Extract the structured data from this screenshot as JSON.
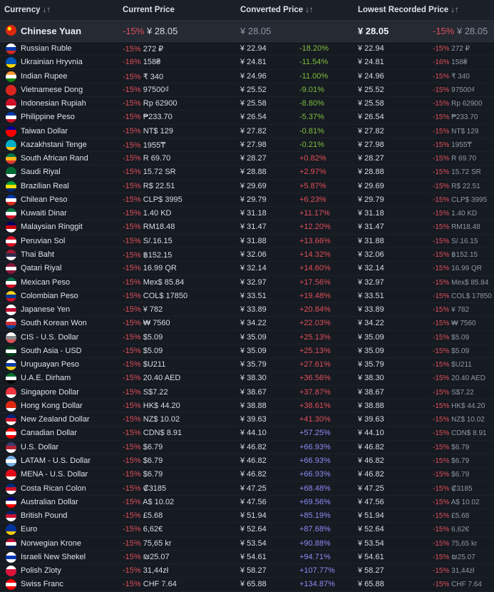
{
  "headers": {
    "currency": "Currency",
    "current_price": "Current Price",
    "converted_price": "Converted Price",
    "lowest_price": "Lowest Recorded Price",
    "sort_icon": "↓↑"
  },
  "highlight": {
    "currency": "Chinese Yuan",
    "flag": [
      "#de2910",
      "#de2910",
      "#ffde00"
    ],
    "discount": "-15%",
    "price": "¥ 28.05",
    "converted": "¥ 28.05",
    "lowest": "¥ 28.05",
    "lowest_discount": "-15%",
    "lowest_price": "¥ 28.05"
  },
  "rows": [
    {
      "currency": "Russian Ruble",
      "flag": [
        "#ffffff",
        "#0039a6",
        "#d52b1e"
      ],
      "discount": "-15%",
      "price": "272 ₽",
      "converted": "¥ 22.94",
      "diff": "-18.20%",
      "cls": "neg",
      "lowest": "¥ 22.94",
      "low_discount": "-15%",
      "low_price": "272 ₽"
    },
    {
      "currency": "Ukrainian Hryvnia",
      "flag": [
        "#0057b7",
        "#0057b7",
        "#ffd700"
      ],
      "discount": "-16%",
      "price": "158₴",
      "converted": "¥ 24.81",
      "diff": "-11.54%",
      "cls": "neg",
      "lowest": "¥ 24.81",
      "low_discount": "-16%",
      "low_price": "158₴"
    },
    {
      "currency": "Indian Rupee",
      "flag": [
        "#ff9933",
        "#ffffff",
        "#138808"
      ],
      "discount": "-15%",
      "price": "₹ 340",
      "converted": "¥ 24.96",
      "diff": "-11.00%",
      "cls": "neg",
      "lowest": "¥ 24.96",
      "low_discount": "-15%",
      "low_price": "₹ 340"
    },
    {
      "currency": "Vietnamese Dong",
      "flag": [
        "#da251d",
        "#da251d",
        "#da251d"
      ],
      "discount": "-15%",
      "price": "97500₫",
      "converted": "¥ 25.52",
      "diff": "-9.01%",
      "cls": "neg",
      "lowest": "¥ 25.52",
      "low_discount": "-15%",
      "low_price": "97500₫"
    },
    {
      "currency": "Indonesian Rupiah",
      "flag": [
        "#ce1126",
        "#ce1126",
        "#ffffff"
      ],
      "discount": "-15%",
      "price": "Rp 62900",
      "converted": "¥ 25.58",
      "diff": "-8.80%",
      "cls": "neg",
      "lowest": "¥ 25.58",
      "low_discount": "-15%",
      "low_price": "Rp 62900"
    },
    {
      "currency": "Philippine Peso",
      "flag": [
        "#0038a8",
        "#ffffff",
        "#ce1126"
      ],
      "discount": "-15%",
      "price": "₱233.70",
      "converted": "¥ 26.54",
      "diff": "-5.37%",
      "cls": "neg",
      "lowest": "¥ 26.54",
      "low_discount": "-15%",
      "low_price": "₱233.70"
    },
    {
      "currency": "Taiwan Dollar",
      "flag": [
        "#000095",
        "#fe0000",
        "#fe0000"
      ],
      "discount": "-15%",
      "price": "NT$ 129",
      "converted": "¥ 27.82",
      "diff": "-0.81%",
      "cls": "neg",
      "lowest": "¥ 27.82",
      "low_discount": "-15%",
      "low_price": "NT$ 129"
    },
    {
      "currency": "Kazakhstani Tenge",
      "flag": [
        "#00afca",
        "#00afca",
        "#fec50c"
      ],
      "discount": "-15%",
      "price": "1955₸",
      "converted": "¥ 27.98",
      "diff": "-0.21%",
      "cls": "neg",
      "lowest": "¥ 27.98",
      "low_discount": "-15%",
      "low_price": "1955₸"
    },
    {
      "currency": "South African Rand",
      "flag": [
        "#007a4d",
        "#ffb612",
        "#de3831"
      ],
      "discount": "-15%",
      "price": "R 69.70",
      "converted": "¥ 28.27",
      "diff": "+0.82%",
      "cls": "pos",
      "lowest": "¥ 28.27",
      "low_discount": "-15%",
      "low_price": "R 69.70"
    },
    {
      "currency": "Saudi Riyal",
      "flag": [
        "#006c35",
        "#006c35",
        "#ffffff"
      ],
      "discount": "-15%",
      "price": "15.72 SR",
      "converted": "¥ 28.88",
      "diff": "+2.97%",
      "cls": "pos",
      "lowest": "¥ 28.88",
      "low_discount": "-15%",
      "low_price": "15.72 SR"
    },
    {
      "currency": "Brazilian Real",
      "flag": [
        "#009c3b",
        "#ffdf00",
        "#002776"
      ],
      "discount": "-15%",
      "price": "R$ 22.51",
      "converted": "¥ 29.69",
      "diff": "+5.87%",
      "cls": "pos",
      "lowest": "¥ 29.69",
      "low_discount": "-15%",
      "low_price": "R$ 22.51"
    },
    {
      "currency": "Chilean Peso",
      "flag": [
        "#0039a6",
        "#ffffff",
        "#d52b1e"
      ],
      "discount": "-15%",
      "price": "CLP$ 3995",
      "converted": "¥ 29.79",
      "diff": "+6.23%",
      "cls": "pos",
      "lowest": "¥ 29.79",
      "low_discount": "-15%",
      "low_price": "CLP$ 3995"
    },
    {
      "currency": "Kuwaiti Dinar",
      "flag": [
        "#007a3d",
        "#ffffff",
        "#ce1126"
      ],
      "discount": "-15%",
      "price": "1.40 KD",
      "converted": "¥ 31.18",
      "diff": "+11.17%",
      "cls": "pos",
      "lowest": "¥ 31.18",
      "low_discount": "-15%",
      "low_price": "1.40 KD"
    },
    {
      "currency": "Malaysian Ringgit",
      "flag": [
        "#010066",
        "#cc0001",
        "#ffffff"
      ],
      "discount": "-15%",
      "price": "RM18.48",
      "converted": "¥ 31.47",
      "diff": "+12.20%",
      "cls": "pos",
      "lowest": "¥ 31.47",
      "low_discount": "-15%",
      "low_price": "RM18.48"
    },
    {
      "currency": "Peruvian Sol",
      "flag": [
        "#d91023",
        "#ffffff",
        "#d91023"
      ],
      "discount": "-15%",
      "price": "S/.16.15",
      "converted": "¥ 31.88",
      "diff": "+13.66%",
      "cls": "pos",
      "lowest": "¥ 31.88",
      "low_discount": "-15%",
      "low_price": "S/.16.15"
    },
    {
      "currency": "Thai Baht",
      "flag": [
        "#a51931",
        "#2d2a4a",
        "#f4f5f8"
      ],
      "discount": "-15%",
      "price": "฿152.15",
      "converted": "¥ 32.06",
      "diff": "+14.32%",
      "cls": "pos",
      "lowest": "¥ 32.06",
      "low_discount": "-15%",
      "low_price": "฿152.15"
    },
    {
      "currency": "Qatari Riyal",
      "flag": [
        "#8a1538",
        "#ffffff",
        "#8a1538"
      ],
      "discount": "-15%",
      "price": "16.99 QR",
      "converted": "¥ 32.14",
      "diff": "+14.60%",
      "cls": "pos",
      "lowest": "¥ 32.14",
      "low_discount": "-15%",
      "low_price": "16.99 QR"
    },
    {
      "currency": "Mexican Peso",
      "flag": [
        "#006847",
        "#ffffff",
        "#ce1126"
      ],
      "discount": "-15%",
      "price": "Mex$ 85.84",
      "converted": "¥ 32.97",
      "diff": "+17.56%",
      "cls": "pos",
      "lowest": "¥ 32.97",
      "low_discount": "-15%",
      "low_price": "Mex$ 85.84"
    },
    {
      "currency": "Colombian Peso",
      "flag": [
        "#fcd116",
        "#003893",
        "#ce1126"
      ],
      "discount": "-15%",
      "price": "COL$ 17850",
      "converted": "¥ 33.51",
      "diff": "+19.48%",
      "cls": "pos",
      "lowest": "¥ 33.51",
      "low_discount": "-15%",
      "low_price": "COL$ 17850"
    },
    {
      "currency": "Japanese Yen",
      "flag": [
        "#ffffff",
        "#bc002d",
        "#ffffff"
      ],
      "discount": "-15%",
      "price": "¥ 782",
      "converted": "¥ 33.89",
      "diff": "+20.84%",
      "cls": "pos",
      "lowest": "¥ 33.89",
      "low_discount": "-15%",
      "low_price": "¥ 782"
    },
    {
      "currency": "South Korean Won",
      "flag": [
        "#ffffff",
        "#cd2e3a",
        "#0047a0"
      ],
      "discount": "-15%",
      "price": "₩ 7560",
      "converted": "¥ 34.22",
      "diff": "+22.03%",
      "cls": "pos",
      "lowest": "¥ 34.22",
      "low_discount": "-15%",
      "low_price": "₩ 7560"
    },
    {
      "currency": "CIS - U.S. Dollar",
      "flag": [
        "#ffffff",
        "#8a8a8a",
        "#e0505a"
      ],
      "discount": "-15%",
      "price": "$5.09",
      "converted": "¥ 35.09",
      "diff": "+25.13%",
      "cls": "pos",
      "lowest": "¥ 35.09",
      "low_discount": "-15%",
      "low_price": "$5.09"
    },
    {
      "currency": "South Asia - USD",
      "flag": [
        "#01411c",
        "#ffffff",
        "#01411c"
      ],
      "discount": "-15%",
      "price": "$5.09",
      "converted": "¥ 35.09",
      "diff": "+25.13%",
      "cls": "pos",
      "lowest": "¥ 35.09",
      "low_discount": "-15%",
      "low_price": "$5.09"
    },
    {
      "currency": "Uruguayan Peso",
      "flag": [
        "#ffffff",
        "#0038a8",
        "#fcd116"
      ],
      "discount": "-15%",
      "price": "$U211",
      "converted": "¥ 35.79",
      "diff": "+27.61%",
      "cls": "pos",
      "lowest": "¥ 35.79",
      "low_discount": "-15%",
      "low_price": "$U211"
    },
    {
      "currency": "U.A.E. Dirham",
      "flag": [
        "#00732f",
        "#ffffff",
        "#000000"
      ],
      "discount": "-15%",
      "price": "20.40 AED",
      "converted": "¥ 38.30",
      "diff": "+36.56%",
      "cls": "pos",
      "lowest": "¥ 38.30",
      "low_discount": "-15%",
      "low_price": "20.40 AED"
    },
    {
      "currency": "Singapore Dollar",
      "flag": [
        "#ef3340",
        "#ef3340",
        "#ffffff"
      ],
      "discount": "-15%",
      "price": "S$7.22",
      "converted": "¥ 38.67",
      "diff": "+37.87%",
      "cls": "pos",
      "lowest": "¥ 38.67",
      "low_discount": "-15%",
      "low_price": "S$7.22"
    },
    {
      "currency": "Hong Kong Dollar",
      "flag": [
        "#de2910",
        "#de2910",
        "#ffffff"
      ],
      "discount": "-15%",
      "price": "HK$ 44.20",
      "converted": "¥ 38.88",
      "diff": "+38.61%",
      "cls": "pos",
      "lowest": "¥ 38.88",
      "low_discount": "-15%",
      "low_price": "HK$ 44.20"
    },
    {
      "currency": "New Zealand Dollar",
      "flag": [
        "#00247d",
        "#cc142b",
        "#ffffff"
      ],
      "discount": "-15%",
      "price": "NZ$ 10.02",
      "converted": "¥ 39.63",
      "diff": "+41.30%",
      "cls": "pos",
      "lowest": "¥ 39.63",
      "low_discount": "-15%",
      "low_price": "NZ$ 10.02"
    },
    {
      "currency": "Canadian Dollar",
      "flag": [
        "#ff0000",
        "#ffffff",
        "#ff0000"
      ],
      "discount": "-15%",
      "price": "CDN$ 8.91",
      "converted": "¥ 44.10",
      "diff": "+57.25%",
      "cls": "pur",
      "lowest": "¥ 44.10",
      "low_discount": "-15%",
      "low_price": "CDN$ 8.91"
    },
    {
      "currency": "U.S. Dollar",
      "flag": [
        "#3c3b6e",
        "#b22234",
        "#ffffff"
      ],
      "discount": "-15%",
      "price": "$6.79",
      "converted": "¥ 46.82",
      "diff": "+66.93%",
      "cls": "pur",
      "lowest": "¥ 46.82",
      "low_discount": "-15%",
      "low_price": "$6.79"
    },
    {
      "currency": "LATAM - U.S. Dollar",
      "flag": [
        "#74acdf",
        "#ffffff",
        "#74acdf"
      ],
      "discount": "-15%",
      "price": "$6.79",
      "converted": "¥ 46.82",
      "diff": "+66.93%",
      "cls": "pur",
      "lowest": "¥ 46.82",
      "low_discount": "-15%",
      "low_price": "$6.79"
    },
    {
      "currency": "MENA - U.S. Dollar",
      "flag": [
        "#e30a17",
        "#e30a17",
        "#ffffff"
      ],
      "discount": "-15%",
      "price": "$6.79",
      "converted": "¥ 46.82",
      "diff": "+66.93%",
      "cls": "pur",
      "lowest": "¥ 46.82",
      "low_discount": "-15%",
      "low_price": "$6.79"
    },
    {
      "currency": "Costa Rican Colon",
      "flag": [
        "#002b7f",
        "#ce1126",
        "#ffffff"
      ],
      "discount": "-15%",
      "price": "₡3185",
      "converted": "¥ 47.25",
      "diff": "+68.48%",
      "cls": "pur",
      "lowest": "¥ 47.25",
      "low_discount": "-15%",
      "low_price": "₡3185"
    },
    {
      "currency": "Australian Dollar",
      "flag": [
        "#00008b",
        "#ffffff",
        "#ff0000"
      ],
      "discount": "-15%",
      "price": "A$ 10.02",
      "converted": "¥ 47.56",
      "diff": "+69.56%",
      "cls": "pur",
      "lowest": "¥ 47.56",
      "low_discount": "-15%",
      "low_price": "A$ 10.02"
    },
    {
      "currency": "British Pound",
      "flag": [
        "#012169",
        "#c8102e",
        "#ffffff"
      ],
      "discount": "-15%",
      "price": "£5.68",
      "converted": "¥ 51.94",
      "diff": "+85.19%",
      "cls": "pur",
      "lowest": "¥ 51.94",
      "low_discount": "-15%",
      "low_price": "£5.68"
    },
    {
      "currency": "Euro",
      "flag": [
        "#003399",
        "#003399",
        "#ffcc00"
      ],
      "discount": "-15%",
      "price": "6,62€",
      "converted": "¥ 52.64",
      "diff": "+87.68%",
      "cls": "pur",
      "lowest": "¥ 52.64",
      "low_discount": "-15%",
      "low_price": "6,62€"
    },
    {
      "currency": "Norwegian Krone",
      "flag": [
        "#ba0c2f",
        "#ffffff",
        "#00205b"
      ],
      "discount": "-15%",
      "price": "75,65 kr",
      "converted": "¥ 53.54",
      "diff": "+90.88%",
      "cls": "pur",
      "lowest": "¥ 53.54",
      "low_discount": "-15%",
      "low_price": "75,65 kr"
    },
    {
      "currency": "Israeli New Shekel",
      "flag": [
        "#ffffff",
        "#0038b8",
        "#ffffff"
      ],
      "discount": "-15%",
      "price": "₪25.07",
      "converted": "¥ 54.61",
      "diff": "+94.71%",
      "cls": "pur",
      "lowest": "¥ 54.61",
      "low_discount": "-15%",
      "low_price": "₪25.07"
    },
    {
      "currency": "Polish Zloty",
      "flag": [
        "#ffffff",
        "#dc143c",
        "#dc143c"
      ],
      "discount": "-15%",
      "price": "31,44zł",
      "converted": "¥ 58.27",
      "diff": "+107.77%",
      "cls": "pur",
      "lowest": "¥ 58.27",
      "low_discount": "-15%",
      "low_price": "31,44zł"
    },
    {
      "currency": "Swiss Franc",
      "flag": [
        "#ff0000",
        "#ffffff",
        "#ff0000"
      ],
      "discount": "-15%",
      "price": "CHF 7.64",
      "converted": "¥ 65.88",
      "diff": "+134.87%",
      "cls": "pur",
      "lowest": "¥ 65.88",
      "low_discount": "-15%",
      "low_price": "CHF 7.64"
    }
  ]
}
